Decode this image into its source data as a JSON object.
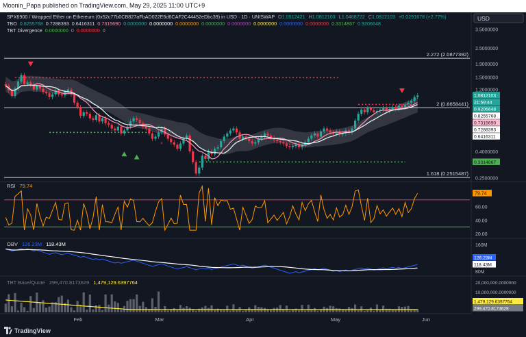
{
  "header": {
    "published_text": "Moonin_Papa published on TradingView.com, May 29, 2025 11:00 UTC+9",
    "currency_button": "USD"
  },
  "legend": {
    "symbol_line": "SPX6900 / Wrapped Ether on Ethereum (0x52c77b0CB827aFbAD022E6d6CAF2C44452eDbc39) in USD · 1D · UNISWAP",
    "ohlc": [
      {
        "label": "O",
        "value": "1.0512421"
      },
      {
        "label": "H",
        "value": "1.0812103"
      },
      {
        "label": "L",
        "value": "1.0468722"
      },
      {
        "label": "C",
        "value": "1.0812103"
      }
    ],
    "change": "+0.0291678 (+2.77%)",
    "tbo_label": "TBO",
    "tbo_values": [
      {
        "value": "0.8255768",
        "color": "#26a69a"
      },
      {
        "value": "0.7288393",
        "color": "#d1d4dc"
      },
      {
        "value": "0.6416311",
        "color": "#d1d4dc"
      },
      {
        "value": "0.7315690",
        "color": "#f48fb1"
      },
      {
        "value": "0.0000000",
        "color": "#26a69a"
      },
      {
        "value": "0.0000000",
        "color": "#ffffff"
      },
      {
        "value": "0.0000000",
        "color": "#ff9800"
      },
      {
        "value": "0.0000000",
        "color": "#4caf50"
      },
      {
        "value": "0.0000000",
        "color": "#ab47bc"
      },
      {
        "value": "0.0000000",
        "color": "#ffeb3b"
      },
      {
        "value": "0.0000000",
        "color": "#2962ff"
      },
      {
        "value": "0.0000000",
        "color": "#f23645"
      },
      {
        "value": "0.3314867",
        "color": "#4caf50"
      },
      {
        "value": "0.9206648",
        "color": "#26a69a"
      }
    ],
    "tbt_label": "TBT Divergence",
    "tbt_values": [
      {
        "value": "0.0000000",
        "color": "#4caf50"
      },
      {
        "value": "0",
        "color": "#9598a1"
      },
      {
        "value": "0.0000000",
        "color": "#f23645"
      },
      {
        "value": "0",
        "color": "#9598a1"
      }
    ]
  },
  "price_pane": {
    "axis_ticks": [
      "3.5000000",
      "2.5000000",
      "1.9000000",
      "1.5000000",
      "1.2000000",
      "0.7000000",
      "0.4000000",
      "0.2500000"
    ],
    "fib_levels": [
      {
        "label": "2.272 (2.0877392)",
        "value": 2.0877392
      },
      {
        "label": "2 (0.8658441)",
        "value": 0.8658441
      },
      {
        "label": "1.618 (0.2515487)",
        "value": 0.2515487
      }
    ],
    "price_tags": [
      {
        "text": "1.0812103",
        "value": 1.0812103,
        "bg": "#26a69a",
        "fg": "#ffffff"
      },
      {
        "text": "21:59:44",
        "value": 1.02,
        "bg": "#26a69a",
        "fg": "#ffffff"
      },
      {
        "text": "0.9206648",
        "value": 0.9206648,
        "bg": "#26a69a",
        "fg": "#ffffff"
      },
      {
        "text": "0.8255768",
        "value": 0.8255768,
        "bg": "#ffffff",
        "fg": "#131722"
      },
      {
        "text": "0.7315690",
        "value": 0.731569,
        "bg": "#f8bbd0",
        "fg": "#131722"
      },
      {
        "text": "0.7288393",
        "value": 0.7288393,
        "bg": "#ffffff",
        "fg": "#131722"
      },
      {
        "text": "0.6416311",
        "value": 0.6416311,
        "bg": "#ffffff",
        "fg": "#131722"
      },
      {
        "text": "0.3314867",
        "value": 0.3314867,
        "bg": "#4caf50",
        "fg": "#131722"
      }
    ]
  },
  "rsi_pane": {
    "label": "RSI",
    "value": "79.74",
    "axis_ticks": [
      "60.00",
      "40.00",
      "20.00"
    ],
    "tag": "79.74"
  },
  "obv_pane": {
    "label": "OBV",
    "value1": "126.23M",
    "value2": "118.43M",
    "axis_ticks": [
      "160M",
      "80M"
    ],
    "tags": [
      {
        "text": "126.23M",
        "bg": "#2962ff",
        "fg": "#ffffff"
      },
      {
        "text": "118.43M",
        "bg": "#ffffff",
        "fg": "#131722"
      }
    ]
  },
  "tbt_pane": {
    "label": "TBT Base/Quote",
    "value1": "299,470.8173629",
    "value2": "1,479,129.6397764",
    "axis_ticks": [
      "20,000,000.0000000",
      "10,000,000.0000000"
    ],
    "tags": [
      {
        "text": "1,479,129.6397764",
        "bg": "#ffeb3b",
        "fg": "#131722"
      },
      {
        "text": "299,470.8173629",
        "bg": "#787b86",
        "fg": "#ffffff"
      }
    ]
  },
  "time_axis": [
    "Feb",
    "Mar",
    "Apr",
    "May",
    "Jun"
  ],
  "footer": {
    "brand": "TradingView"
  },
  "chart_data": {
    "type": "candlestick",
    "x_labels": [
      "Feb",
      "Mar",
      "Apr",
      "May",
      "Jun"
    ],
    "price_scale": "log",
    "ylim": [
      0.24,
      3.7
    ],
    "close": [
      1.28,
      1.18,
      1.07,
      1.22,
      1.38,
      1.55,
      1.32,
      1.36,
      1.31,
      1.2,
      1.28,
      1.22,
      1.15,
      1.12,
      1.05,
      1.1,
      1.18,
      1.1,
      1.08,
      1.15,
      1.2,
      1.1,
      0.95,
      0.88,
      0.75,
      0.8,
      0.78,
      0.72,
      0.7,
      0.76,
      0.68,
      0.72,
      0.66,
      0.64,
      0.6,
      0.58,
      0.62,
      0.55,
      0.58,
      0.62,
      0.68,
      0.72,
      0.7,
      0.66,
      0.62,
      0.6,
      0.55,
      0.5,
      0.52,
      0.56,
      0.6,
      0.54,
      0.5,
      0.47,
      0.45,
      0.42,
      0.46,
      0.5,
      0.53,
      0.4,
      0.33,
      0.27,
      0.3,
      0.37,
      0.35,
      0.4,
      0.38,
      0.42,
      0.43,
      0.48,
      0.52,
      0.55,
      0.58,
      0.6,
      0.56,
      0.5,
      0.52,
      0.5,
      0.48,
      0.46,
      0.47,
      0.5,
      0.52,
      0.55,
      0.53,
      0.51,
      0.49,
      0.48,
      0.47,
      0.46,
      0.44,
      0.43,
      0.44,
      0.45,
      0.43,
      0.45,
      0.47,
      0.5,
      0.53,
      0.55,
      0.52,
      0.57,
      0.6,
      0.58,
      0.56,
      0.55,
      0.57,
      0.54,
      0.55,
      0.58,
      0.56,
      0.6,
      0.69,
      0.78,
      0.84,
      0.8,
      0.86,
      0.83,
      0.8,
      0.82,
      0.84,
      0.86,
      0.82,
      0.85,
      0.88,
      0.85,
      0.9,
      0.88,
      0.92,
      0.95,
      0.98,
      1.05,
      1.08
    ],
    "rsi": {
      "last": 79.74,
      "ticks": [
        60,
        40,
        20
      ],
      "ylim": [
        15,
        95
      ],
      "overbought": 70,
      "oversold": 30
    },
    "obv": {
      "last": "126.23M",
      "ma": "118.43M",
      "ticks": [
        "160M",
        "80M"
      ]
    },
    "tbt_base_quote": {
      "value1": "299,470.8173629",
      "value2": "1,479,129.6397764"
    }
  }
}
